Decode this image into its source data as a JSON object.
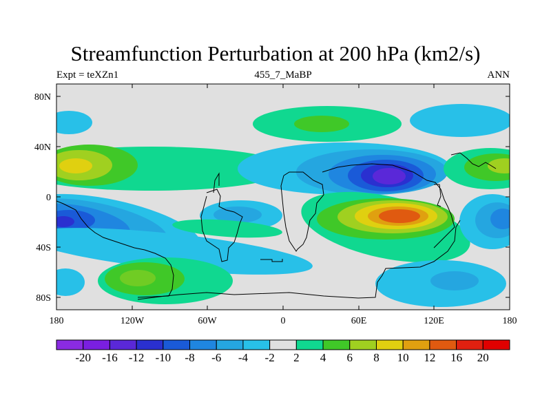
{
  "header": {
    "title": "Streamfunction Perturbation at 200 hPa (km2/s)",
    "left": "Expt = teXZn1",
    "center": "455_7_MaBP",
    "right": "ANN"
  },
  "axes": {
    "lat_labels": [
      "80N",
      "40N",
      "0",
      "40S",
      "80S"
    ],
    "lon_labels": [
      "180",
      "120W",
      "60W",
      "0",
      "60E",
      "120E",
      "180"
    ]
  },
  "colorbar": {
    "labels": [
      "-20",
      "-16",
      "-12",
      "-10",
      "-8",
      "-6",
      "-4",
      "-2",
      "2",
      "4",
      "6",
      "8",
      "10",
      "12",
      "16",
      "20"
    ],
    "colors": [
      "#8a2be2",
      "#7a1fe0",
      "#5a28d8",
      "#2a30d0",
      "#1a5ad8",
      "#1f86e0",
      "#25a6e0",
      "#28c0e8",
      "#e0e0e0",
      "#10d890",
      "#40c828",
      "#a0d020",
      "#e0d010",
      "#e0a010",
      "#e05a10",
      "#e02010",
      "#e00000"
    ]
  },
  "map": {
    "background_color": "#e0e0e0",
    "coastline_color": "#000000"
  }
}
